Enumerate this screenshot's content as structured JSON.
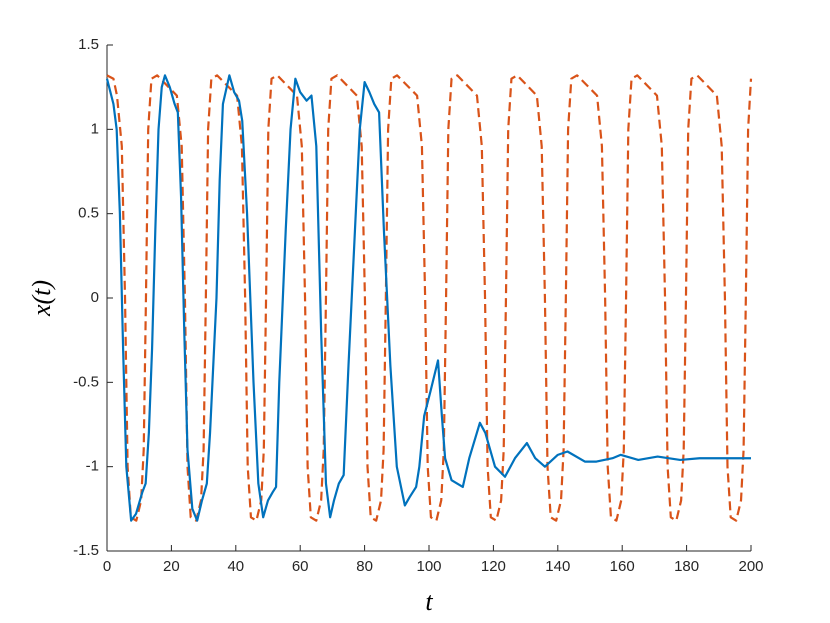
{
  "chart_data": {
    "type": "line",
    "xlabel": "t",
    "ylabel": "x(t)",
    "xlim": [
      0,
      200
    ],
    "ylim": [
      -1.5,
      1.5
    ],
    "xticks": [
      0,
      20,
      40,
      60,
      80,
      100,
      120,
      140,
      160,
      180,
      200
    ],
    "yticks": [
      -1.5,
      -1,
      -0.5,
      0,
      0.5,
      1,
      1.5
    ],
    "grid": false,
    "series": [
      {
        "color": "#0072BD",
        "line_style": "solid",
        "x": [
          0,
          2,
          3,
          4,
          5,
          6,
          7.5,
          9,
          11,
          12,
          13,
          14,
          15,
          16,
          17,
          18,
          19.5,
          21,
          22,
          23,
          24,
          25,
          26.5,
          28,
          29.5,
          31,
          32,
          34,
          35,
          36,
          38,
          39.5,
          41,
          42,
          43.5,
          45.5,
          47,
          48.5,
          50,
          51.5,
          52.5,
          53.5,
          55.5,
          57,
          58.5,
          60,
          62,
          63.5,
          65,
          66.5,
          68,
          69.3,
          70.5,
          72,
          73.5,
          75,
          77,
          78.5,
          80,
          81.5,
          83,
          84.5,
          86,
          88,
          90,
          92.5,
          94,
          96,
          97,
          98.5,
          100.5,
          102.8,
          104,
          105,
          107,
          110.5,
          112.5,
          115.8,
          117.5,
          120.5,
          123.6,
          126.7,
          130.4,
          133,
          136,
          140,
          143,
          148.4,
          152,
          157,
          159.5,
          165,
          171,
          178,
          184,
          200
        ],
        "values": [
          1.3,
          1.15,
          1.0,
          0.5,
          -0.3,
          -1.0,
          -1.32,
          -1.28,
          -1.15,
          -1.1,
          -0.8,
          -0.3,
          0.4,
          1.0,
          1.25,
          1.32,
          1.25,
          1.15,
          1.1,
          0.6,
          -0.2,
          -0.9,
          -1.25,
          -1.32,
          -1.2,
          -1.1,
          -0.8,
          0,
          0.7,
          1.15,
          1.32,
          1.22,
          1.17,
          1.05,
          0.5,
          -0.5,
          -1.1,
          -1.3,
          -1.2,
          -1.15,
          -1.12,
          -0.5,
          0.4,
          1.0,
          1.3,
          1.22,
          1.17,
          1.2,
          0.9,
          -0.2,
          -1.1,
          -1.3,
          -1.2,
          -1.1,
          -1.05,
          -0.4,
          0.4,
          1.0,
          1.28,
          1.22,
          1.15,
          1.1,
          0.4,
          -0.4,
          -1.0,
          -1.23,
          -1.18,
          -1.12,
          -1.0,
          -0.7,
          -0.55,
          -0.37,
          -0.7,
          -0.95,
          -1.08,
          -1.12,
          -0.95,
          -0.74,
          -0.8,
          -1.0,
          -1.06,
          -0.95,
          -0.86,
          -0.95,
          -1.0,
          -0.93,
          -0.91,
          -0.97,
          -0.97,
          -0.95,
          -0.93,
          -0.96,
          -0.94,
          -0.96,
          -0.95,
          -0.95
        ]
      },
      {
        "color": "#D95319",
        "line_style": "dashed",
        "x": [
          0,
          2,
          3.1,
          4.6,
          5.6,
          6.4,
          7.4,
          9.1,
          10.6,
          11.4,
          12.1,
          12.8,
          13.8,
          15.6,
          21.7,
          23.2,
          24.2,
          25,
          26,
          27.7,
          29.2,
          30,
          30.7,
          31.4,
          32.4,
          34.2,
          40.4,
          41.9,
          42.9,
          43.7,
          44.7,
          46.4,
          47.9,
          48.7,
          49.4,
          50.1,
          51.1,
          52.9,
          59,
          60.5,
          61.5,
          62.3,
          63.3,
          65,
          66.5,
          67.3,
          68,
          68.7,
          69.7,
          71.5,
          77.6,
          79.1,
          80.1,
          80.9,
          81.9,
          83.6,
          85.1,
          85.9,
          86.6,
          87.3,
          88.3,
          90.1,
          96.3,
          97.8,
          98.8,
          99.6,
          100.6,
          102.3,
          103.8,
          104.6,
          105.3,
          106,
          107,
          108.8,
          114.9,
          116.4,
          117.4,
          118.2,
          119.2,
          120.9,
          122.4,
          123.2,
          123.9,
          124.6,
          125.6,
          127.4,
          133.5,
          135,
          136,
          136.8,
          137.8,
          139.5,
          141,
          141.8,
          142.5,
          143.2,
          144.2,
          146,
          152.2,
          153.7,
          154.7,
          155.5,
          156.5,
          158.2,
          159.7,
          160.5,
          161.2,
          161.9,
          162.9,
          164.7,
          170.8,
          172.3,
          173.3,
          174.1,
          175.1,
          176.8,
          178.3,
          179.1,
          179.8,
          180.5,
          181.5,
          183.3,
          189.4,
          190.9,
          191.9,
          192.7,
          193.7,
          195.4,
          196.9,
          197.7,
          198.4,
          199.1,
          200
        ],
        "values": [
          1.32,
          1.3,
          1.2,
          0.9,
          0,
          -1,
          -1.3,
          -1.32,
          -1.2,
          -0.9,
          0,
          1,
          1.3,
          1.32,
          1.2,
          0.9,
          0,
          -1,
          -1.3,
          -1.32,
          -1.2,
          -0.9,
          0,
          1,
          1.3,
          1.32,
          1.2,
          0.9,
          0,
          -1,
          -1.3,
          -1.32,
          -1.2,
          -0.9,
          0,
          1,
          1.3,
          1.32,
          1.2,
          0.9,
          0,
          -1,
          -1.3,
          -1.32,
          -1.2,
          -0.9,
          0,
          1,
          1.3,
          1.32,
          1.2,
          0.9,
          0,
          -1,
          -1.3,
          -1.32,
          -1.2,
          -0.9,
          0,
          1,
          1.3,
          1.32,
          1.2,
          0.9,
          0,
          -1,
          -1.3,
          -1.32,
          -1.2,
          -0.9,
          0,
          1,
          1.3,
          1.32,
          1.2,
          0.9,
          0,
          -1,
          -1.3,
          -1.32,
          -1.2,
          -0.9,
          0,
          1,
          1.3,
          1.32,
          1.2,
          0.9,
          0,
          -1,
          -1.3,
          -1.32,
          -1.2,
          -0.9,
          0,
          1,
          1.3,
          1.32,
          1.2,
          0.9,
          0,
          -1,
          -1.3,
          -1.32,
          -1.2,
          -0.9,
          0,
          1,
          1.3,
          1.32,
          1.2,
          0.9,
          0,
          -1,
          -1.3,
          -1.32,
          -1.2,
          -0.9,
          0,
          1,
          1.3,
          1.32,
          1.2,
          0.9,
          0,
          -1,
          -1.3,
          -1.32,
          -1.2,
          -0.9,
          0,
          1,
          1.3
        ]
      }
    ]
  }
}
